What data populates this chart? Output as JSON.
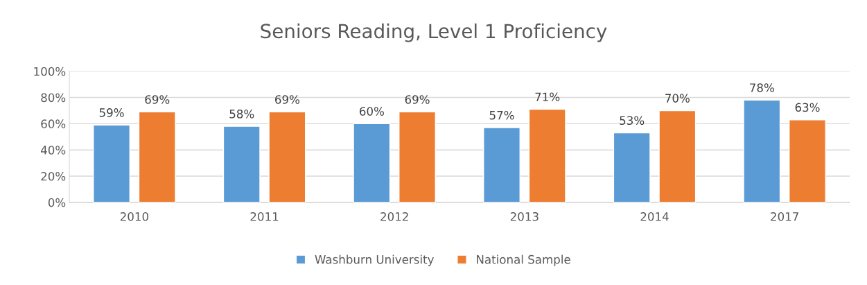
{
  "chart_data": {
    "type": "bar",
    "title": "Seniors Reading, Level 1 Proficiency",
    "categories": [
      "2010",
      "2011",
      "2012",
      "2013",
      "2014",
      "2017"
    ],
    "series": [
      {
        "name": "Washburn University",
        "color": "#5b9bd5",
        "values": [
          59,
          58,
          60,
          57,
          53,
          78
        ],
        "value_labels": [
          "59%",
          "58%",
          "60%",
          "57%",
          "53%",
          "78%"
        ]
      },
      {
        "name": "National Sample",
        "color": "#ed7d31",
        "values": [
          69,
          69,
          69,
          71,
          70,
          63
        ],
        "value_labels": [
          "69%",
          "69%",
          "69%",
          "71%",
          "70%",
          "63%"
        ]
      }
    ],
    "ylim": [
      0,
      100
    ],
    "yticks": [
      {
        "value": 0,
        "label": "0%"
      },
      {
        "value": 20,
        "label": "20%"
      },
      {
        "value": 40,
        "label": "40%"
      },
      {
        "value": 60,
        "label": "60%"
      },
      {
        "value": 80,
        "label": "80%"
      },
      {
        "value": 100,
        "label": "100%"
      }
    ],
    "grid": "y",
    "legend": "bottom"
  }
}
